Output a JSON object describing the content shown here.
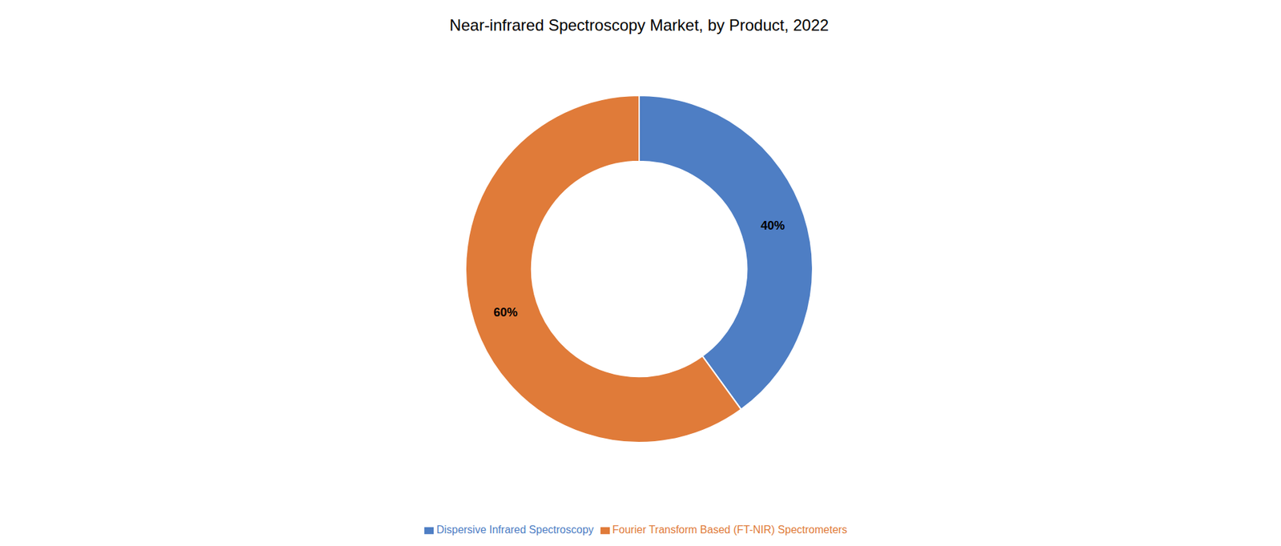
{
  "chart_data": {
    "type": "donut",
    "title": "Near-infrared Spectroscopy Market, by Product, 2022",
    "categories": [
      "Dispersive Infrared Spectroscopy",
      "Fourier Transform Based (FT-NIR) Spectrometers"
    ],
    "values": [
      40,
      60
    ],
    "value_labels": [
      "40%",
      "60%"
    ],
    "data_labels": true,
    "colors": [
      "#4E7EC4",
      "#E07B39"
    ],
    "legend": "bottom"
  }
}
